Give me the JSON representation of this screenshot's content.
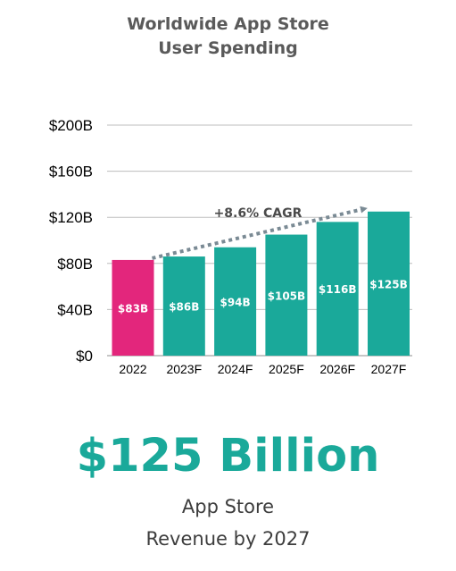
{
  "chart_data": {
    "type": "bar",
    "title_lines": [
      "Worldwide App Store",
      "User Spending"
    ],
    "categories": [
      "2022",
      "2023F",
      "2024F",
      "2025F",
      "2026F",
      "2027F"
    ],
    "values": [
      83,
      86,
      94,
      105,
      116,
      125
    ],
    "data_labels": [
      "$83B",
      "$86B",
      "$94B",
      "$105B",
      "$116B",
      "$125B"
    ],
    "bar_colors": [
      "#e3267c",
      "#1aa99a",
      "#1aa99a",
      "#1aa99a",
      "#1aa99a",
      "#1aa99a"
    ],
    "y_ticks": [
      0,
      40,
      80,
      120,
      160,
      200
    ],
    "y_tick_labels": [
      "$0",
      "$40B",
      "$80B",
      "$120B",
      "$160B",
      "$200B"
    ],
    "ylim": [
      0,
      200
    ],
    "grid": true,
    "annotation": "+8.6% CAGR",
    "annotation_color": "#7a8a94"
  },
  "headline": {
    "value": "$125 Billion",
    "line1": "App Store",
    "line2": "Revenue by 2027"
  },
  "colors": {
    "teal": "#1aa99a",
    "pink": "#e3267c"
  }
}
